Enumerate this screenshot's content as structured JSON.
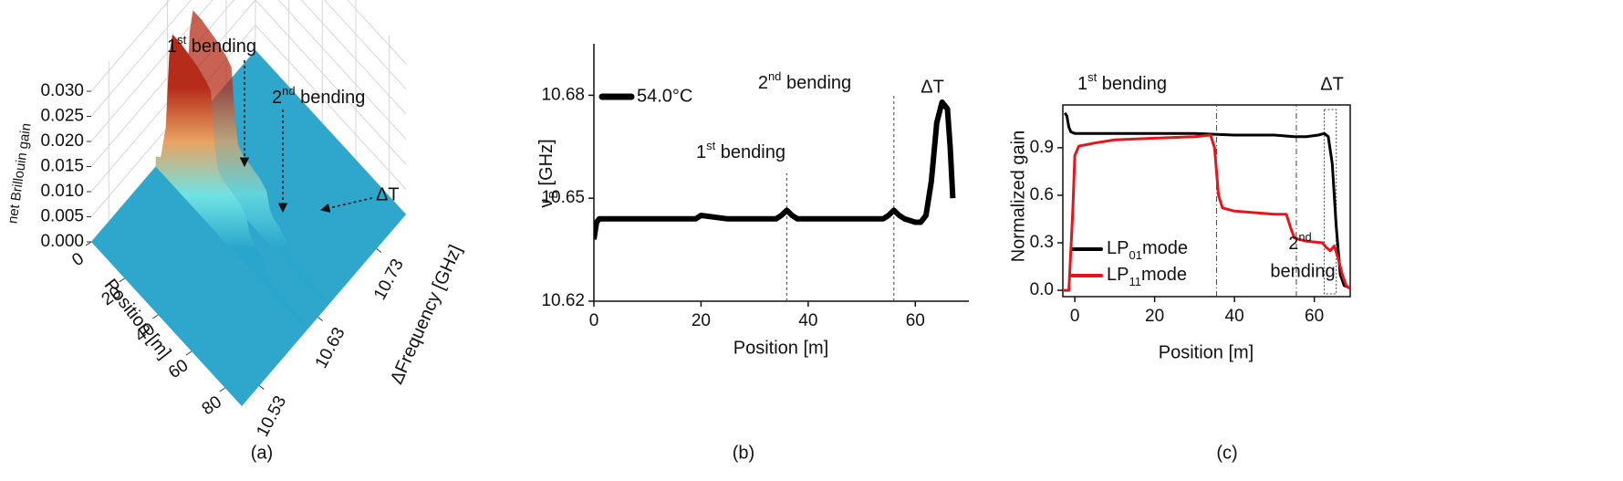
{
  "chart_data": [
    {
      "type": "surface3d",
      "caption": "(a)",
      "z_label": "net Brillouin gain",
      "x_label": "Position [m]",
      "y_label": "ΔFrequency [GHz]",
      "xlim": [
        0,
        90
      ],
      "ylim": [
        10.5,
        10.78
      ],
      "zlim": [
        0,
        0.032
      ],
      "xticks": [
        0,
        20,
        40,
        60,
        80
      ],
      "yticks": [
        10.53,
        10.63,
        10.73
      ],
      "zticks": [
        {
          "value": 0,
          "label": "0.000"
        },
        {
          "value": 0.005,
          "label": "0.005"
        },
        {
          "value": 0.01,
          "label": "0.010"
        },
        {
          "value": 0.015,
          "label": "0.015"
        },
        {
          "value": 0.02,
          "label": "0.020"
        },
        {
          "value": 0.025,
          "label": "0.025"
        },
        {
          "value": 0.03,
          "label": "0.030"
        }
      ],
      "peak_frequency": 10.61,
      "x": [
        0,
        3,
        6,
        8,
        10,
        15,
        20,
        25,
        30,
        33,
        35,
        37,
        40,
        45,
        50,
        54,
        56,
        58,
        62,
        65,
        68,
        70,
        75,
        80,
        85,
        90
      ],
      "values": [
        0.002,
        0.003,
        0.01,
        0.025,
        0.03,
        0.03,
        0.0295,
        0.029,
        0.028,
        0.027,
        0.018,
        0.013,
        0.012,
        0.0115,
        0.011,
        0.01,
        0.007,
        0.006,
        0.0055,
        0.0045,
        0.003,
        0.002,
        0.002,
        0.0015,
        0.0015,
        0.0015
      ],
      "colormap": [
        "#2aa6cc",
        "#6fe3e3",
        "#e9a262",
        "#b52d1a"
      ],
      "floor_color": "#2fa7cc",
      "annotations": [
        [
          "1",
          "st",
          " bending"
        ],
        [
          "2",
          "nd",
          " bending"
        ],
        "ΔT"
      ]
    },
    {
      "type": "line",
      "caption": "(b)",
      "x_label": "Position [m]",
      "y_label": [
        "ν",
        "B",
        " [GHz]"
      ],
      "xlim": [
        0,
        70
      ],
      "ylim": [
        10.62,
        10.695
      ],
      "xticks": [
        0,
        20,
        40,
        60
      ],
      "yticks": [
        10.62,
        10.65,
        10.68
      ],
      "series": [
        {
          "name": "54.0°C",
          "color": "#000000",
          "x": [
            0,
            0.5,
            1,
            5,
            10,
            15,
            19,
            20,
            25,
            30,
            34,
            35,
            36,
            37,
            38,
            45,
            50,
            54,
            55,
            56,
            57,
            58,
            60,
            61,
            62,
            63,
            64,
            65,
            66,
            66.5,
            67
          ],
          "values": [
            10.638,
            10.643,
            10.644,
            10.644,
            10.644,
            10.644,
            10.644,
            10.645,
            10.644,
            10.644,
            10.644,
            10.645,
            10.6465,
            10.645,
            10.644,
            10.644,
            10.644,
            10.644,
            10.645,
            10.6465,
            10.645,
            10.644,
            10.643,
            10.643,
            10.645,
            10.655,
            10.672,
            10.678,
            10.676,
            10.665,
            10.65
          ]
        }
      ],
      "vlines": [
        36,
        56
      ],
      "annotations": [
        [
          "1",
          "st",
          " bending"
        ],
        [
          "2",
          "nd",
          " bending"
        ],
        "ΔT"
      ]
    },
    {
      "type": "line",
      "caption": "(c)",
      "x_label": "Position [m]",
      "y_label": "Normalized gain",
      "xlim": [
        -3,
        69
      ],
      "ylim": [
        -0.04,
        1.17
      ],
      "xticks": [
        0,
        20,
        40,
        60
      ],
      "yticks": [
        {
          "value": 0,
          "label": "0.0"
        },
        0.3,
        0.6,
        0.9
      ],
      "series": [
        {
          "name": [
            "LP",
            "01",
            "mode"
          ],
          "color": "#000000",
          "x": [
            -2.5,
            -2,
            -1.5,
            -1,
            0,
            10,
            20,
            30,
            40,
            50,
            55,
            58,
            61,
            62.5,
            63.5,
            64.5,
            65.5,
            66.5,
            67.5,
            68.5
          ],
          "values": [
            1.12,
            1.1,
            1.03,
            1.0,
            0.99,
            0.99,
            0.99,
            0.99,
            0.98,
            0.98,
            0.97,
            0.97,
            0.98,
            0.99,
            0.97,
            0.8,
            0.4,
            0.1,
            0.03,
            0.02
          ]
        },
        {
          "name": [
            "LP",
            "11",
            "mode"
          ],
          "color": "#e8141b",
          "x": [
            -3,
            -1.5,
            -0.5,
            0,
            1,
            5,
            10,
            20,
            30,
            34,
            35,
            36,
            37,
            40,
            45,
            50,
            53,
            54,
            55,
            58,
            62,
            63,
            64,
            65,
            66,
            67,
            68,
            69
          ],
          "values": [
            0.0,
            0.0,
            0.5,
            0.85,
            0.91,
            0.93,
            0.95,
            0.96,
            0.97,
            0.98,
            0.9,
            0.6,
            0.52,
            0.5,
            0.49,
            0.48,
            0.48,
            0.4,
            0.33,
            0.31,
            0.3,
            0.27,
            0.25,
            0.28,
            0.2,
            0.1,
            0.03,
            0.01
          ]
        }
      ],
      "vlines": [
        35.5,
        55.5
      ],
      "region": [
        62.5,
        65.5
      ],
      "frame": true,
      "legend": "lower left",
      "annotations": [
        [
          "1",
          "st",
          " bending"
        ],
        [
          "2",
          "nd"
        ],
        "bending",
        "ΔT"
      ]
    }
  ]
}
